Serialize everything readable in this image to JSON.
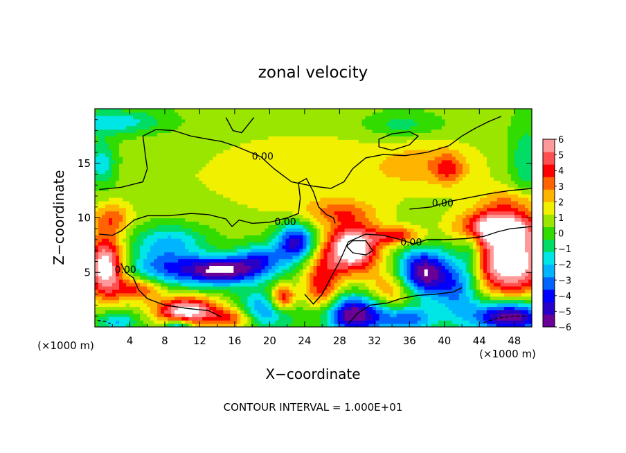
{
  "chart_data": {
    "type": "heatmap",
    "title": "zonal velocity",
    "xlabel": "X−coordinate",
    "ylabel": "Z−coordinate",
    "x_unit": "(×1000 m)",
    "y_unit": "(×1000 m)",
    "xlim": [
      0,
      50
    ],
    "ylim": [
      0,
      20
    ],
    "x_ticks": [
      4,
      8,
      12,
      16,
      20,
      24,
      28,
      32,
      36,
      40,
      44,
      48
    ],
    "y_ticks": [
      5,
      10,
      15
    ],
    "footer": "CONTOUR INTERVAL = 1.000E+01",
    "contour_label": "0.00",
    "colorbar": {
      "min": -6,
      "max": 6,
      "tick_values": [
        6,
        5,
        4,
        3,
        2,
        1,
        0,
        -1,
        -2,
        -3,
        -4,
        -5,
        -6
      ],
      "tick_labels": [
        "6",
        "5",
        "4",
        "3",
        "2",
        "1",
        "0",
        "−1",
        "−2",
        "−3",
        "−4",
        "−5",
        "−6"
      ],
      "colors": [
        "#6a0096",
        "#2800c8",
        "#0000ff",
        "#0064ff",
        "#00b4ff",
        "#00e6e6",
        "#00dc64",
        "#32dc00",
        "#9ae600",
        "#f0f000",
        "#ffb400",
        "#ff6400",
        "#ff0000",
        "#ff5050",
        "#ff9a9a"
      ]
    },
    "contour_label_points": [
      {
        "x": 19.2,
        "z": 15.6
      },
      {
        "x": 21.8,
        "z": 9.6
      },
      {
        "x": 39.8,
        "z": 11.3
      },
      {
        "x": 36.2,
        "z": 7.7
      },
      {
        "x": 3.5,
        "z": 5.2
      }
    ],
    "features": [
      {
        "x": 14.5,
        "z": 5.2,
        "sigma_x": 3.0,
        "sigma_z": 0.9,
        "value": -6.5
      },
      {
        "x": 8.0,
        "z": 5.5,
        "sigma_x": 3.0,
        "sigma_z": 1.2,
        "value": -3.5
      },
      {
        "x": 19.0,
        "z": 6.2,
        "sigma_x": 2.0,
        "sigma_z": 1.0,
        "value": -3.5
      },
      {
        "x": 23.0,
        "z": 7.8,
        "sigma_x": 1.6,
        "sigma_z": 1.2,
        "value": -5.5
      },
      {
        "x": 8.5,
        "z": 8.0,
        "sigma_x": 3.0,
        "sigma_z": 1.0,
        "value": -2.5
      },
      {
        "x": 29.5,
        "z": 7.2,
        "sigma_x": 2.0,
        "sigma_z": 1.5,
        "value": 7.0
      },
      {
        "x": 26.0,
        "z": 3.5,
        "sigma_x": 1.5,
        "sigma_z": 2.5,
        "value": 4.0
      },
      {
        "x": 37.5,
        "z": 5.0,
        "sigma_x": 2.0,
        "sigma_z": 1.5,
        "value": -6.5
      },
      {
        "x": 41.5,
        "z": 3.8,
        "sigma_x": 1.8,
        "sigma_z": 2.0,
        "value": -3.5
      },
      {
        "x": 34.0,
        "z": 3.2,
        "sigma_x": 2.0,
        "sigma_z": 1.5,
        "value": 3.0
      },
      {
        "x": 47.5,
        "z": 6.0,
        "sigma_x": 3.0,
        "sigma_z": 2.2,
        "value": 7.0
      },
      {
        "x": 46.0,
        "z": 9.2,
        "sigma_x": 3.0,
        "sigma_z": 1.0,
        "value": 5.5
      },
      {
        "x": 34.5,
        "z": 8.4,
        "sigma_x": 2.0,
        "sigma_z": 0.6,
        "value": 3.5
      },
      {
        "x": 10.5,
        "z": 1.5,
        "sigma_x": 2.5,
        "sigma_z": 0.9,
        "value": 6.5
      },
      {
        "x": 5.0,
        "z": 3.5,
        "sigma_x": 2.0,
        "sigma_z": 0.8,
        "value": 3.5
      },
      {
        "x": 1.2,
        "z": 5.5,
        "sigma_x": 1.5,
        "sigma_z": 2.0,
        "value": 6.5
      },
      {
        "x": 21.5,
        "z": 2.7,
        "sigma_x": 1.0,
        "sigma_z": 0.8,
        "value": 4.5
      },
      {
        "x": 29.5,
        "z": 1.2,
        "sigma_x": 3.0,
        "sigma_z": 1.2,
        "value": -6.5
      },
      {
        "x": 47.5,
        "z": 1.0,
        "sigma_x": 3.0,
        "sigma_z": 1.0,
        "value": -6.5
      },
      {
        "x": 36.0,
        "z": 0.8,
        "sigma_x": 2.0,
        "sigma_z": 0.8,
        "value": -3.5
      },
      {
        "x": 19.0,
        "z": 1.5,
        "sigma_x": 2.0,
        "sigma_z": 1.2,
        "value": -3.5
      },
      {
        "x": 16.0,
        "z": 0.8,
        "sigma_x": 2.0,
        "sigma_z": 0.8,
        "value": 3.5
      },
      {
        "x": 2.5,
        "z": 0.6,
        "sigma_x": 1.5,
        "sigma_z": 0.6,
        "value": -2.5
      },
      {
        "x": 9.5,
        "z": 0.2,
        "sigma_x": 1.0,
        "sigma_z": 0.4,
        "value": -3.5
      },
      {
        "x": 24.0,
        "z": 14.0,
        "sigma_x": 8.0,
        "sigma_z": 3.0,
        "value": 1.0
      },
      {
        "x": 38.0,
        "z": 15.0,
        "sigma_x": 4.0,
        "sigma_z": 1.5,
        "value": 1.5
      },
      {
        "x": 40.5,
        "z": 14.5,
        "sigma_x": 1.2,
        "sigma_z": 1.0,
        "value": 2.0
      },
      {
        "x": 35.0,
        "z": 18.5,
        "sigma_x": 3.0,
        "sigma_z": 0.8,
        "value": -1.5
      },
      {
        "x": 2.0,
        "z": 18.8,
        "sigma_x": 4.0,
        "sigma_z": 0.8,
        "value": -2.5
      },
      {
        "x": 0.8,
        "z": 15.0,
        "sigma_x": 1.2,
        "sigma_z": 1.5,
        "value": -2.5
      },
      {
        "x": 49.5,
        "z": 15.0,
        "sigma_x": 1.5,
        "sigma_z": 2.5,
        "value": -2.0
      },
      {
        "x": 2.0,
        "z": 10.0,
        "sigma_x": 1.5,
        "sigma_z": 1.0,
        "value": 2.5
      },
      {
        "x": 48.0,
        "z": 11.5,
        "sigma_x": 3.0,
        "sigma_z": 1.0,
        "value": 2.0
      },
      {
        "x": 28.0,
        "z": 10.5,
        "sigma_x": 3.0,
        "sigma_z": 0.8,
        "value": 2.0
      },
      {
        "x": 43.0,
        "z": 7.0,
        "sigma_x": 1.0,
        "sigma_z": 1.5,
        "value": -2.0
      }
    ],
    "contours": [
      {
        "value": 0,
        "style": "solid",
        "points": [
          [
            0.5,
            12.6
          ],
          [
            3,
            12.8
          ],
          [
            5.5,
            13.3
          ],
          [
            6,
            14.5
          ],
          [
            5.8,
            15.6
          ],
          [
            5.5,
            17.5
          ],
          [
            7,
            18.1
          ],
          [
            9,
            18.0
          ],
          [
            11,
            17.5
          ],
          [
            13,
            17.2
          ],
          [
            14.5,
            17.0
          ],
          [
            16,
            16.6
          ],
          [
            17.5,
            16.1
          ],
          [
            19,
            15.6
          ],
          [
            20.5,
            14.5
          ],
          [
            22.5,
            13.3
          ],
          [
            25,
            12.9
          ],
          [
            27,
            12.7
          ],
          [
            28.5,
            13.3
          ],
          [
            29.5,
            14.5
          ],
          [
            31,
            15.5
          ],
          [
            33,
            15.8
          ],
          [
            35.5,
            15.7
          ],
          [
            38,
            16.0
          ],
          [
            40.5,
            16.6
          ],
          [
            42,
            17.5
          ],
          [
            43.5,
            18.2
          ],
          [
            45,
            18.8
          ],
          [
            46.5,
            19.3
          ]
        ]
      },
      {
        "value": 0,
        "style": "solid",
        "points": [
          [
            36,
            10.8
          ],
          [
            38.5,
            11.0
          ],
          [
            40.5,
            11.5
          ],
          [
            42.5,
            11.8
          ],
          [
            45,
            12.2
          ],
          [
            47.5,
            12.5
          ],
          [
            50,
            12.7
          ]
        ]
      },
      {
        "value": 0,
        "style": "solid",
        "points": [
          [
            32.5,
            16.5
          ],
          [
            34,
            16.2
          ],
          [
            36,
            16.7
          ],
          [
            37,
            17.5
          ],
          [
            36,
            17.9
          ],
          [
            34,
            17.7
          ],
          [
            32.5,
            17.2
          ],
          [
            32.5,
            16.5
          ]
        ]
      },
      {
        "value": 0,
        "style": "solid",
        "points": [
          [
            15,
            19.2
          ],
          [
            15.8,
            18.0
          ],
          [
            16.8,
            17.8
          ],
          [
            17.5,
            18.5
          ],
          [
            18.2,
            19.2
          ]
        ]
      },
      {
        "value": 0,
        "style": "solid",
        "points": [
          [
            0.5,
            8.5
          ],
          [
            2,
            8.4
          ],
          [
            3,
            8.8
          ],
          [
            4.5,
            9.8
          ],
          [
            6,
            10.2
          ],
          [
            8.5,
            10.2
          ],
          [
            11,
            10.4
          ],
          [
            13,
            10.3
          ],
          [
            15,
            9.9
          ],
          [
            15.7,
            9.2
          ],
          [
            16.5,
            9.8
          ],
          [
            18,
            9.5
          ],
          [
            20,
            9.6
          ],
          [
            22,
            10.0
          ],
          [
            23.3,
            10.4
          ],
          [
            23.5,
            11.8
          ],
          [
            23.3,
            13.2
          ],
          [
            24.2,
            13.6
          ],
          [
            25,
            12.4
          ],
          [
            25.6,
            11.0
          ],
          [
            26.5,
            10.3
          ],
          [
            27.3,
            10.0
          ],
          [
            27.5,
            9.5
          ]
        ]
      },
      {
        "value": 0,
        "style": "solid",
        "points": [
          [
            3,
            5.8
          ],
          [
            3.5,
            5.0
          ],
          [
            4.4,
            4.5
          ],
          [
            5,
            3.4
          ],
          [
            6,
            2.6
          ],
          [
            8,
            2.0
          ],
          [
            10.5,
            1.7
          ],
          [
            13,
            1.5
          ],
          [
            14.5,
            0.9
          ]
        ]
      },
      {
        "value": 0,
        "style": "solid",
        "points": [
          [
            24,
            3.0
          ],
          [
            25,
            2.1
          ],
          [
            26,
            3.0
          ],
          [
            27,
            4.5
          ],
          [
            28,
            6.0
          ],
          [
            29,
            7.8
          ],
          [
            31,
            8.5
          ],
          [
            33,
            8.4
          ],
          [
            35,
            8.0
          ],
          [
            36.5,
            7.6
          ],
          [
            38,
            8.0
          ],
          [
            40,
            8.0
          ],
          [
            42.5,
            8.1
          ],
          [
            44.5,
            8.3
          ],
          [
            46,
            8.7
          ],
          [
            47.5,
            9.0
          ],
          [
            50,
            9.2
          ]
        ]
      },
      {
        "value": 0,
        "style": "solid",
        "points": [
          [
            29,
            0.3
          ],
          [
            30,
            1.2
          ],
          [
            31.5,
            2.0
          ],
          [
            33.5,
            2.2
          ],
          [
            35,
            2.6
          ],
          [
            37,
            2.9
          ],
          [
            39,
            3.0
          ],
          [
            41,
            3.2
          ],
          [
            42,
            3.6
          ]
        ]
      },
      {
        "value": 0,
        "style": "solid",
        "points": [
          [
            28.8,
            7.4
          ],
          [
            29.5,
            7.9
          ],
          [
            31,
            7.9
          ],
          [
            31.8,
            7.0
          ],
          [
            31,
            6.6
          ],
          [
            29.5,
            6.8
          ],
          [
            28.8,
            7.4
          ]
        ]
      },
      {
        "value": 0,
        "style": "dashed",
        "points": [
          [
            44.5,
            0.4
          ],
          [
            46,
            0.8
          ],
          [
            48,
            1.0
          ],
          [
            49.5,
            1.0
          ]
        ]
      },
      {
        "value": 0,
        "style": "dashed",
        "points": [
          [
            0.3,
            0.6
          ],
          [
            1.2,
            0.5
          ],
          [
            1.8,
            0.3
          ]
        ]
      }
    ]
  }
}
